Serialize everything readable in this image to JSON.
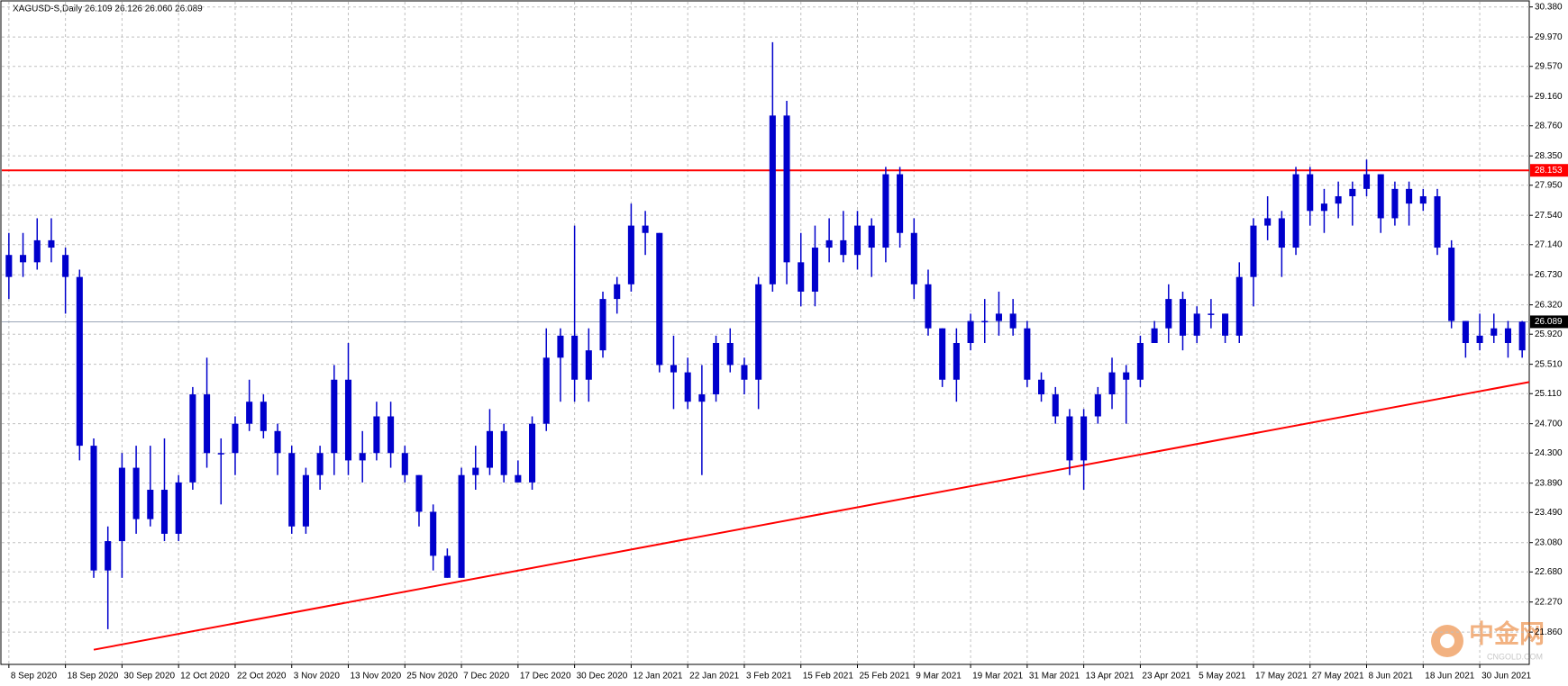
{
  "chart_data": {
    "type": "candlestick",
    "title": "XAGUSD-S,Daily  26.109 26.126 26.060 26.089",
    "color": "#0000cc",
    "grid": true,
    "ylim": [
      21.42,
      30.45
    ],
    "yticks": [
      {
        "value": 30.38,
        "label": "30.380"
      },
      {
        "value": 29.97,
        "label": "29.970"
      },
      {
        "value": 29.57,
        "label": "29.570"
      },
      {
        "value": 29.16,
        "label": "29.160"
      },
      {
        "value": 28.76,
        "label": "28.760"
      },
      {
        "value": 28.35,
        "label": "28.350"
      },
      {
        "value": 27.95,
        "label": "27.950"
      },
      {
        "value": 27.54,
        "label": "27.540"
      },
      {
        "value": 27.14,
        "label": "27.140"
      },
      {
        "value": 26.73,
        "label": "26.730"
      },
      {
        "value": 26.32,
        "label": "26.320"
      },
      {
        "value": 25.92,
        "label": "25.920"
      },
      {
        "value": 25.51,
        "label": "25.510"
      },
      {
        "value": 25.11,
        "label": "25.110"
      },
      {
        "value": 24.7,
        "label": "24.700"
      },
      {
        "value": 24.3,
        "label": "24.300"
      },
      {
        "value": 23.89,
        "label": "23.890"
      },
      {
        "value": 23.49,
        "label": "23.490"
      },
      {
        "value": 23.08,
        "label": "23.080"
      },
      {
        "value": 22.68,
        "label": "22.680"
      },
      {
        "value": 22.27,
        "label": "22.270"
      },
      {
        "value": 21.86,
        "label": "21.860"
      }
    ],
    "categories": [
      "8 Sep 2020",
      null,
      null,
      null,
      "18 Sep 2020",
      null,
      null,
      null,
      "30 Sep 2020",
      null,
      null,
      null,
      "12 Oct 2020",
      null,
      null,
      null,
      "22 Oct 2020",
      null,
      null,
      null,
      "3 Nov 2020",
      null,
      null,
      null,
      "13 Nov 2020",
      null,
      null,
      null,
      "25 Nov 2020",
      null,
      null,
      null,
      "7 Dec 2020",
      null,
      null,
      null,
      "17 Dec 2020",
      null,
      null,
      null,
      "30 Dec 2020",
      null,
      null,
      null,
      "12 Jan 2021",
      null,
      null,
      null,
      "22 Jan 2021",
      null,
      null,
      null,
      "3 Feb 2021",
      null,
      null,
      null,
      "15 Feb 2021",
      null,
      null,
      null,
      "25 Feb 2021",
      null,
      null,
      null,
      "9 Mar 2021",
      null,
      null,
      null,
      "19 Mar 2021",
      null,
      null,
      null,
      "31 Mar 2021",
      null,
      null,
      null,
      "13 Apr 2021",
      null,
      null,
      null,
      "23 Apr 2021",
      null,
      null,
      null,
      "5 May 2021",
      null,
      null,
      null,
      "17 May 2021",
      null,
      null,
      null,
      "27 May 2021",
      null,
      null,
      null,
      "8 Jun 2021",
      null,
      null,
      null,
      "18 Jun 2021",
      null,
      null,
      null,
      "30 Jun 2021",
      null,
      null,
      null
    ],
    "values": [
      [
        26.7,
        27.3,
        26.4,
        27.0
      ],
      [
        27.0,
        27.3,
        26.7,
        26.9
      ],
      [
        26.9,
        27.5,
        26.8,
        27.2
      ],
      [
        27.2,
        27.5,
        26.9,
        27.1
      ],
      [
        27.0,
        27.1,
        26.2,
        26.7
      ],
      [
        26.7,
        26.8,
        24.2,
        24.4
      ],
      [
        24.4,
        24.5,
        22.6,
        22.7
      ],
      [
        22.7,
        23.3,
        21.9,
        23.1
      ],
      [
        23.1,
        24.3,
        22.6,
        24.1
      ],
      [
        24.1,
        24.4,
        23.2,
        23.4
      ],
      [
        23.4,
        24.4,
        23.3,
        23.8
      ],
      [
        23.8,
        24.5,
        23.1,
        23.2
      ],
      [
        23.2,
        24.0,
        23.1,
        23.9
      ],
      [
        23.9,
        25.2,
        23.8,
        25.1
      ],
      [
        25.1,
        25.6,
        24.1,
        24.3
      ],
      [
        24.3,
        24.5,
        23.6,
        24.3
      ],
      [
        24.3,
        24.8,
        24.0,
        24.7
      ],
      [
        24.7,
        25.3,
        24.6,
        25.0
      ],
      [
        25.0,
        25.1,
        24.5,
        24.6
      ],
      [
        24.6,
        24.7,
        24.0,
        24.3
      ],
      [
        24.3,
        24.4,
        23.2,
        23.3
      ],
      [
        23.3,
        24.1,
        23.2,
        24.0
      ],
      [
        24.0,
        24.4,
        23.8,
        24.3
      ],
      [
        24.3,
        25.5,
        24.0,
        25.3
      ],
      [
        25.3,
        25.8,
        24.0,
        24.2
      ],
      [
        24.2,
        24.6,
        23.9,
        24.3
      ],
      [
        24.3,
        25.0,
        24.2,
        24.8
      ],
      [
        24.8,
        25.0,
        24.1,
        24.3
      ],
      [
        24.3,
        24.4,
        23.9,
        24.0
      ],
      [
        24.0,
        24.0,
        23.3,
        23.5
      ],
      [
        23.5,
        23.6,
        22.7,
        22.9
      ],
      [
        22.9,
        23.0,
        22.6,
        22.6
      ],
      [
        22.6,
        24.1,
        22.6,
        24.0
      ],
      [
        24.0,
        24.4,
        23.8,
        24.1
      ],
      [
        24.1,
        24.9,
        24.0,
        24.6
      ],
      [
        24.6,
        24.7,
        23.9,
        24.0
      ],
      [
        24.0,
        24.2,
        23.9,
        23.9
      ],
      [
        23.9,
        24.8,
        23.8,
        24.7
      ],
      [
        24.7,
        26.0,
        24.6,
        25.6
      ],
      [
        25.6,
        26.0,
        25.0,
        25.9
      ],
      [
        25.9,
        27.4,
        25.0,
        25.3
      ],
      [
        25.3,
        26.0,
        25.0,
        25.7
      ],
      [
        25.7,
        26.5,
        25.6,
        26.4
      ],
      [
        26.4,
        26.7,
        26.2,
        26.6
      ],
      [
        26.6,
        27.7,
        26.5,
        27.4
      ],
      [
        27.4,
        27.6,
        27.0,
        27.3
      ],
      [
        27.3,
        27.3,
        25.4,
        25.5
      ],
      [
        25.5,
        25.9,
        24.9,
        25.4
      ],
      [
        25.4,
        25.6,
        24.9,
        25.0
      ],
      [
        25.0,
        25.5,
        24.0,
        25.1
      ],
      [
        25.1,
        25.9,
        25.0,
        25.8
      ],
      [
        25.8,
        26.0,
        25.4,
        25.5
      ],
      [
        25.5,
        25.6,
        25.1,
        25.3
      ],
      [
        25.3,
        26.7,
        24.9,
        26.6
      ],
      [
        26.6,
        29.9,
        26.5,
        28.9
      ],
      [
        28.9,
        29.1,
        26.6,
        26.9
      ],
      [
        26.9,
        27.3,
        26.3,
        26.5
      ],
      [
        26.5,
        27.4,
        26.3,
        27.1
      ],
      [
        27.1,
        27.5,
        26.9,
        27.2
      ],
      [
        27.2,
        27.6,
        26.9,
        27.0
      ],
      [
        27.0,
        27.6,
        26.8,
        27.4
      ],
      [
        27.4,
        27.5,
        26.7,
        27.1
      ],
      [
        27.1,
        28.2,
        26.9,
        28.1
      ],
      [
        28.1,
        28.2,
        27.1,
        27.3
      ],
      [
        27.3,
        27.5,
        26.4,
        26.6
      ],
      [
        26.6,
        26.8,
        25.9,
        26.0
      ],
      [
        26.0,
        26.0,
        25.2,
        25.3
      ],
      [
        25.3,
        26.0,
        25.0,
        25.8
      ],
      [
        25.8,
        26.2,
        25.7,
        26.1
      ],
      [
        26.1,
        26.4,
        25.8,
        26.1
      ],
      [
        26.1,
        26.5,
        25.9,
        26.2
      ],
      [
        26.2,
        26.4,
        25.9,
        26.0
      ],
      [
        26.0,
        26.1,
        25.2,
        25.3
      ],
      [
        25.3,
        25.4,
        25.0,
        25.1
      ],
      [
        25.1,
        25.2,
        24.7,
        24.8
      ],
      [
        24.8,
        24.9,
        24.0,
        24.2
      ],
      [
        24.2,
        24.9,
        23.8,
        24.8
      ],
      [
        24.8,
        25.2,
        24.7,
        25.1
      ],
      [
        25.1,
        25.6,
        24.9,
        25.4
      ],
      [
        25.4,
        25.5,
        24.7,
        25.3
      ],
      [
        25.3,
        25.9,
        25.2,
        25.8
      ],
      [
        25.8,
        26.1,
        25.8,
        26.0
      ],
      [
        26.0,
        26.6,
        25.8,
        26.4
      ],
      [
        26.4,
        26.5,
        25.7,
        25.9
      ],
      [
        25.9,
        26.3,
        25.8,
        26.2
      ],
      [
        26.2,
        26.4,
        26.0,
        26.2
      ],
      [
        26.2,
        26.2,
        25.8,
        25.9
      ],
      [
        25.9,
        26.9,
        25.8,
        26.7
      ],
      [
        26.7,
        27.5,
        26.3,
        27.4
      ],
      [
        27.4,
        27.8,
        27.2,
        27.5
      ],
      [
        27.5,
        27.6,
        26.7,
        27.1
      ],
      [
        27.1,
        28.2,
        27.0,
        28.1
      ],
      [
        28.1,
        28.2,
        27.4,
        27.6
      ],
      [
        27.6,
        27.9,
        27.3,
        27.7
      ],
      [
        27.7,
        28.0,
        27.5,
        27.8
      ],
      [
        27.8,
        28.0,
        27.4,
        27.9
      ],
      [
        27.9,
        28.3,
        27.8,
        28.1
      ],
      [
        28.1,
        28.1,
        27.3,
        27.5
      ],
      [
        27.5,
        28.0,
        27.4,
        27.9
      ],
      [
        27.9,
        28.0,
        27.4,
        27.7
      ],
      [
        27.7,
        27.9,
        27.6,
        27.8
      ],
      [
        27.8,
        27.9,
        27.0,
        27.1
      ],
      [
        27.1,
        27.2,
        26.0,
        26.1
      ],
      [
        26.1,
        26.1,
        25.6,
        25.8
      ],
      [
        25.8,
        26.2,
        25.7,
        25.9
      ],
      [
        25.9,
        26.2,
        25.8,
        26.0
      ],
      [
        26.0,
        26.1,
        25.6,
        25.8
      ],
      [
        25.7,
        26.1,
        25.6,
        26.09
      ]
    ],
    "resistance": {
      "value": 28.153,
      "label": "28.153",
      "color": "#ff0000"
    },
    "last_price": {
      "value": 26.089,
      "label": "26.089"
    },
    "trend_line": {
      "from_index": 6,
      "from": 21.62,
      "to_index": 107,
      "to": 25.25,
      "color": "#ff0000"
    },
    "watermark": {
      "brand": "中金网",
      "site": "CNGOLD.COM"
    }
  }
}
